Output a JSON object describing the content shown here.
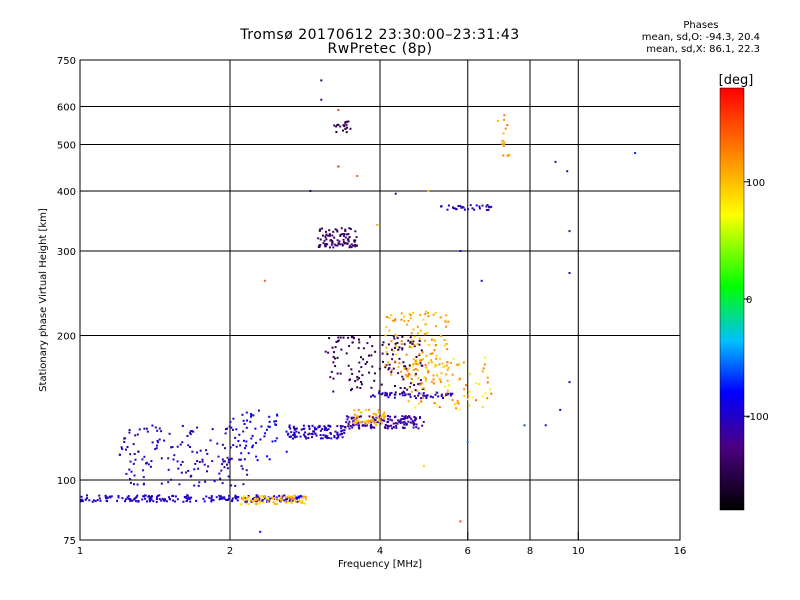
{
  "chart_data": {
    "type": "scatter",
    "title": "Tromsø 20170612 23:30:00–23:31:43",
    "subtitle": "RwPretec (8p)",
    "xlabel": "Frequency [MHz]",
    "ylabel": "Stationary phase Virtual Height [km]",
    "xscale": "log",
    "yscale": "log",
    "xlim": [
      1,
      16
    ],
    "ylim": [
      75,
      750
    ],
    "xticks": [
      1,
      2,
      4,
      6,
      8,
      10,
      16
    ],
    "xtick_labels": [
      "1",
      "2",
      "4",
      "6",
      "8",
      "10",
      "16"
    ],
    "yticks": [
      75,
      100,
      200,
      300,
      400,
      500,
      600,
      750
    ],
    "ytick_labels": [
      "75",
      "100",
      "200",
      "300",
      "400",
      "500",
      "600",
      "750"
    ],
    "grid_x": [
      2,
      4,
      6,
      8,
      10
    ],
    "grid_y": [
      100,
      200,
      300,
      400,
      500,
      600
    ],
    "grid": true,
    "colorbar": {
      "label": "[deg]",
      "range": [
        -180,
        180
      ],
      "ticks": [
        100,
        0,
        -100
      ],
      "tick_labels": [
        "100",
        "0",
        "-100"
      ]
    },
    "legend": {
      "heading": "Phases",
      "lines": [
        "mean, sd,O: -94.3, 20.4",
        "mean, sd,X:  86.1, 22.3"
      ]
    },
    "clusters": [
      {
        "f": [
          1.0,
          2.8
        ],
        "h": [
          90,
          93
        ],
        "phase": [
          -110,
          -90
        ],
        "n": 220
      },
      {
        "f": [
          2.1,
          2.9
        ],
        "h": [
          89,
          93
        ],
        "phase": [
          80,
          120
        ],
        "n": 70
      },
      {
        "f": [
          1.2,
          2.2
        ],
        "h": [
          97,
          130
        ],
        "phase": [
          -115,
          -95
        ],
        "n": 160
      },
      {
        "f": [
          2.0,
          2.6
        ],
        "h": [
          110,
          140
        ],
        "phase": [
          -100,
          -75
        ],
        "n": 50
      },
      {
        "f": [
          2.6,
          3.4
        ],
        "h": [
          122,
          130
        ],
        "phase": [
          -110,
          -95
        ],
        "n": 110
      },
      {
        "f": [
          3.4,
          4.9
        ],
        "h": [
          128,
          136
        ],
        "phase": [
          -125,
          -105
        ],
        "n": 140
      },
      {
        "f": [
          3.1,
          4.9
        ],
        "h": [
          150,
          200
        ],
        "phase": [
          -160,
          -130
        ],
        "n": 150
      },
      {
        "f": [
          4.1,
          5.5
        ],
        "h": [
          160,
          225
        ],
        "phase": [
          90,
          130
        ],
        "n": 130
      },
      {
        "f": [
          4.5,
          6.8
        ],
        "h": [
          140,
          180
        ],
        "phase": [
          60,
          140
        ],
        "n": 90
      },
      {
        "f": [
          3.5,
          4.1
        ],
        "h": [
          130,
          140
        ],
        "phase": [
          90,
          120
        ],
        "n": 50
      },
      {
        "f": [
          3.8,
          5.6
        ],
        "h": [
          148,
          152
        ],
        "phase": [
          -110,
          -95
        ],
        "n": 50
      },
      {
        "f": [
          3.0,
          3.6
        ],
        "h": [
          305,
          335
        ],
        "phase": [
          -150,
          -125
        ],
        "n": 90
      },
      {
        "f": [
          3.2,
          3.5
        ],
        "h": [
          530,
          560
        ],
        "phase": [
          -160,
          -130
        ],
        "n": 20
      },
      {
        "f": [
          5.3,
          6.7
        ],
        "h": [
          365,
          375
        ],
        "phase": [
          -120,
          -90
        ],
        "n": 30
      },
      {
        "f": [
          7.0,
          7.3
        ],
        "h": [
          470,
          620
        ],
        "phase": [
          100,
          130
        ],
        "n": 14
      }
    ],
    "sparse_points": [
      [
        3.05,
        680,
        -140
      ],
      [
        3.05,
        620,
        -130
      ],
      [
        3.3,
        590,
        150
      ],
      [
        2.9,
        400,
        -120
      ],
      [
        4.3,
        395,
        -130
      ],
      [
        9.0,
        460,
        -110
      ],
      [
        9.5,
        440,
        -110
      ],
      [
        13.0,
        480,
        -70
      ],
      [
        9.6,
        330,
        -120
      ],
      [
        9.6,
        270,
        -110
      ],
      [
        9.6,
        160,
        -110
      ],
      [
        2.35,
        260,
        140
      ],
      [
        2.3,
        78,
        -90
      ],
      [
        5.8,
        82,
        150
      ],
      [
        4.9,
        107,
        90
      ],
      [
        6.9,
        560,
        100
      ],
      [
        3.95,
        340,
        110
      ],
      [
        3.6,
        430,
        140
      ],
      [
        5.8,
        300,
        -90
      ],
      [
        6.4,
        260,
        -100
      ],
      [
        7.8,
        130,
        -60
      ],
      [
        8.6,
        130,
        -110
      ],
      [
        9.2,
        140,
        -110
      ],
      [
        6.0,
        120,
        -50
      ],
      [
        3.3,
        450,
        160
      ],
      [
        5.0,
        400,
        90
      ]
    ]
  }
}
